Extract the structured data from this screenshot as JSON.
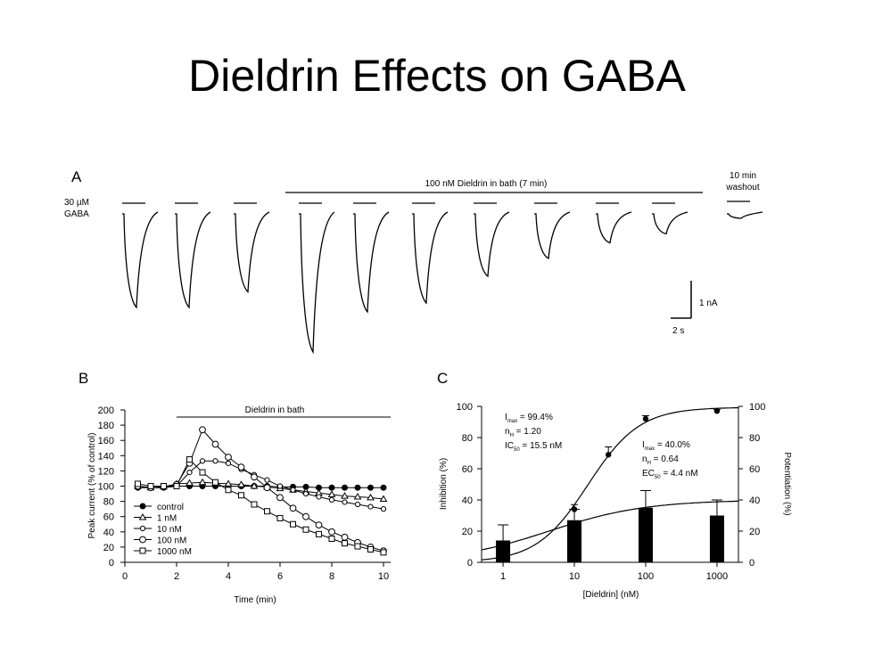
{
  "slide": {
    "title": "Dieldrin Effects on GABA"
  },
  "panel_a": {
    "letter": "A",
    "gaba_label_line1": "30 µM",
    "gaba_label_line2": "GABA",
    "bath_label": "100 nM Dieldrin in bath (7 min)",
    "washout_line1": "10 min",
    "washout_line2": "washout",
    "scale_y": "1 nA",
    "scale_x": "2 s",
    "trace_peaks": [
      0.42,
      0.42,
      0.35,
      0.62,
      0.44,
      0.4,
      0.28,
      0.2,
      0.13,
      0.09,
      0.02
    ]
  },
  "panel_b": {
    "letter": "B",
    "bath_label": "Dieldrin in bath"
  },
  "panel_c": {
    "letter": "C",
    "stats_left": {
      "line1": "I",
      "line1_sub": "max",
      "line1_rest": " = 99.4%",
      "line2": "n",
      "line2_sub": "H",
      "line2_rest": " = 1.20",
      "line3": "IC",
      "line3_sub": "50",
      "line3_rest": " = 15.5 nM"
    },
    "stats_right": {
      "line1": "I",
      "line1_sub": "max",
      "line1_rest": " = 40.0%",
      "line2": "n",
      "line2_sub": "H",
      "line2_rest": " = 0.64",
      "line3": "EC",
      "line3_sub": "50",
      "line3_rest": " = 4.4 nM"
    }
  },
  "chart_data": [
    {
      "type": "line",
      "xlabel": "Time (min)",
      "ylabel": "Peak current (% of control)",
      "xlim": [
        0,
        10
      ],
      "ylim": [
        0,
        200
      ],
      "xticks": [
        "0",
        "2",
        "4",
        "6",
        "8",
        "10"
      ],
      "yticks": [
        "0",
        "20",
        "40",
        "60",
        "80",
        "100",
        "120",
        "140",
        "160",
        "180",
        "200"
      ],
      "legend_position": "bottom-left",
      "grid": false,
      "series": [
        {
          "name": "control",
          "marker": "filled-circle",
          "x": [
            0.5,
            1,
            1.5,
            2,
            2.5,
            3,
            3.5,
            4,
            4.5,
            5,
            5.5,
            6,
            6.5,
            7,
            7.5,
            8,
            8.5,
            9,
            9.5,
            10
          ],
          "y": [
            98,
            98,
            98,
            100,
            100,
            100,
            100,
            100,
            100,
            100,
            100,
            99,
            99,
            99,
            98,
            98,
            98,
            98,
            98,
            98
          ]
        },
        {
          "name": "1 nM",
          "marker": "open-triangle",
          "x": [
            0.5,
            1,
            1.5,
            2,
            2.5,
            3,
            3.5,
            4,
            4.5,
            5,
            5.5,
            6,
            6.5,
            7,
            7.5,
            8,
            8.5,
            9,
            9.5,
            10
          ],
          "y": [
            100,
            98,
            99,
            103,
            104,
            105,
            104,
            103,
            102,
            100,
            99,
            97,
            95,
            93,
            91,
            89,
            87,
            86,
            85,
            83
          ]
        },
        {
          "name": "10 nM",
          "marker": "open-small-circle",
          "x": [
            0.5,
            1,
            1.5,
            2,
            2.5,
            3,
            3.5,
            4,
            4.5,
            5,
            5.5,
            6,
            6.5,
            7,
            7.5,
            8,
            8.5,
            9,
            9.5,
            10
          ],
          "y": [
            100,
            98,
            98,
            100,
            118,
            133,
            133,
            130,
            122,
            115,
            108,
            100,
            95,
            90,
            86,
            82,
            79,
            76,
            73,
            70
          ]
        },
        {
          "name": "100 nM",
          "marker": "open-circle",
          "x": [
            0.5,
            1,
            1.5,
            2,
            2.5,
            3,
            3.5,
            4,
            4.5,
            5,
            5.5,
            6,
            6.5,
            7,
            7.5,
            8,
            8.5,
            9,
            9.5,
            10
          ],
          "y": [
            100,
            98,
            99,
            102,
            130,
            174,
            155,
            138,
            125,
            112,
            98,
            85,
            71,
            60,
            49,
            40,
            33,
            26,
            20,
            15
          ]
        },
        {
          "name": "1000 nM",
          "marker": "open-square",
          "x": [
            0.5,
            1,
            1.5,
            2,
            2.5,
            3,
            3.5,
            4,
            4.5,
            5,
            5.5,
            6,
            6.5,
            7,
            7.5,
            8,
            8.5,
            9,
            9.5,
            10
          ],
          "y": [
            103,
            100,
            100,
            100,
            135,
            118,
            105,
            95,
            88,
            76,
            67,
            58,
            50,
            43,
            37,
            31,
            25,
            21,
            17,
            13
          ]
        }
      ]
    },
    {
      "type": "bar",
      "xlabel": "[Dieldrin] (nM)",
      "ylabel": "Inhibition (%)",
      "y2label": "Potentiation (%)",
      "xscale": "log",
      "xlim": [
        0.5,
        2000
      ],
      "ylim": [
        0,
        100
      ],
      "y2lim": [
        0,
        100
      ],
      "xticks": [
        "1",
        "10",
        "100",
        "1000"
      ],
      "yticks": [
        "0",
        "20",
        "40",
        "60",
        "80",
        "100"
      ],
      "y2ticks": [
        "0",
        "20",
        "40",
        "60",
        "80",
        "100"
      ],
      "grid": false,
      "inhibition_points": {
        "x": [
          10,
          30,
          100,
          1000
        ],
        "y": [
          34,
          69,
          92,
          97
        ],
        "err": [
          3,
          5,
          2,
          1
        ]
      },
      "potentiation_bars": {
        "x": [
          1,
          10,
          100,
          1000
        ],
        "y": [
          14,
          27,
          35,
          30
        ],
        "err": [
          10,
          7,
          11,
          10
        ]
      },
      "inhibition_fit": {
        "Imax": 99.4,
        "nH": 1.2,
        "IC50": 15.5
      },
      "potentiation_fit": {
        "Imax": 40.0,
        "nH": 0.64,
        "EC50": 4.4
      }
    }
  ]
}
